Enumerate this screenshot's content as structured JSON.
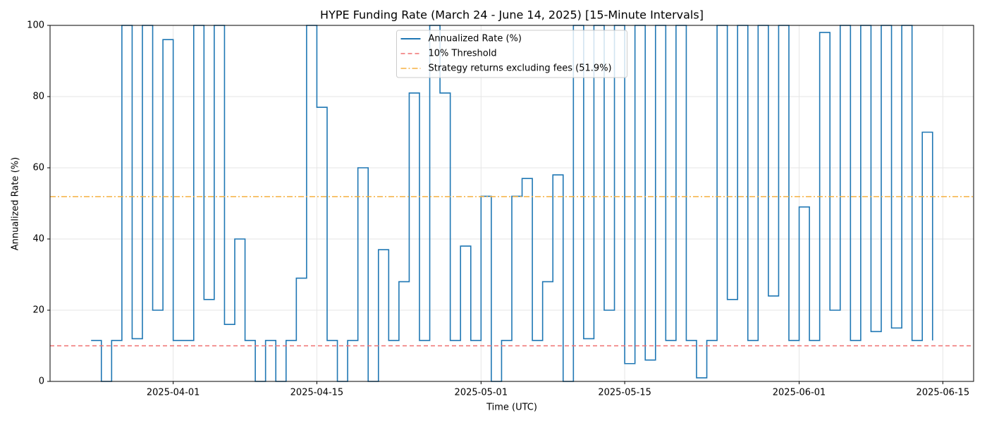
{
  "chart_data": {
    "type": "line",
    "title": "HYPE Funding Rate (March 24 - June 14, 2025) [15-Minute Intervals]",
    "xlabel": "Time (UTC)",
    "ylabel": "Annualized Rate (%)",
    "x": [
      "2025-03-24",
      "2025-03-25",
      "2025-03-26",
      "2025-03-27",
      "2025-03-28",
      "2025-03-29",
      "2025-03-30",
      "2025-03-31",
      "2025-04-01",
      "2025-04-02",
      "2025-04-03",
      "2025-04-04",
      "2025-04-05",
      "2025-04-06",
      "2025-04-07",
      "2025-04-08",
      "2025-04-09",
      "2025-04-10",
      "2025-04-11",
      "2025-04-12",
      "2025-04-13",
      "2025-04-14",
      "2025-04-15",
      "2025-04-16",
      "2025-04-17",
      "2025-04-18",
      "2025-04-19",
      "2025-04-20",
      "2025-04-21",
      "2025-04-22",
      "2025-04-23",
      "2025-04-24",
      "2025-04-25",
      "2025-04-26",
      "2025-04-27",
      "2025-04-28",
      "2025-04-29",
      "2025-04-30",
      "2025-05-01",
      "2025-05-02",
      "2025-05-03",
      "2025-05-04",
      "2025-05-05",
      "2025-05-06",
      "2025-05-07",
      "2025-05-08",
      "2025-05-09",
      "2025-05-10",
      "2025-05-11",
      "2025-05-12",
      "2025-05-13",
      "2025-05-14",
      "2025-05-15",
      "2025-05-16",
      "2025-05-17",
      "2025-05-18",
      "2025-05-19",
      "2025-05-20",
      "2025-05-21",
      "2025-05-22",
      "2025-05-23",
      "2025-05-24",
      "2025-05-25",
      "2025-05-26",
      "2025-05-27",
      "2025-05-28",
      "2025-05-29",
      "2025-05-30",
      "2025-05-31",
      "2025-06-01",
      "2025-06-02",
      "2025-06-03",
      "2025-06-04",
      "2025-06-05",
      "2025-06-06",
      "2025-06-07",
      "2025-06-08",
      "2025-06-09",
      "2025-06-10",
      "2025-06-11",
      "2025-06-12",
      "2025-06-13",
      "2025-06-14"
    ],
    "series": [
      {
        "name": "Annualized Rate (%)",
        "color": "#1f77b4",
        "step": true,
        "values": [
          11.5,
          0,
          11.5,
          100,
          12,
          100,
          20,
          96,
          11.5,
          11.5,
          100,
          23,
          100,
          16,
          40,
          11.5,
          0,
          11.5,
          0,
          11.5,
          29,
          100,
          77,
          11.5,
          0,
          11.5,
          60,
          0,
          37,
          11.5,
          28,
          81,
          11.5,
          100,
          81,
          11.5,
          38,
          11.5,
          52,
          0,
          11.5,
          52,
          57,
          11.5,
          28,
          58,
          0,
          100,
          12,
          100,
          20,
          100,
          5,
          100,
          6,
          100,
          11.5,
          100,
          11.5,
          1,
          11.5,
          100,
          23,
          100,
          11.5,
          100,
          24,
          100,
          11.5,
          49,
          11.5,
          98,
          20,
          100,
          11.5,
          100,
          14,
          100,
          15,
          100,
          11.5,
          70,
          11.5
        ]
      }
    ],
    "reference_lines": [
      {
        "name": "10% Threshold",
        "value": 10,
        "color": "#f07070",
        "style": "dashed"
      },
      {
        "name": "Strategy returns excluding fees (51.9%)",
        "value": 51.9,
        "color": "#f5b041",
        "style": "dashdot"
      }
    ],
    "xlim": [
      "2025-03-20",
      "2025-06-18"
    ],
    "xticks": [
      "2025-04-01",
      "2025-04-15",
      "2025-05-01",
      "2025-05-15",
      "2025-06-01",
      "2025-06-15"
    ],
    "ylim": [
      0,
      100
    ],
    "yticks": [
      0,
      20,
      40,
      60,
      80,
      100
    ],
    "grid": true,
    "legend": "upper center"
  }
}
